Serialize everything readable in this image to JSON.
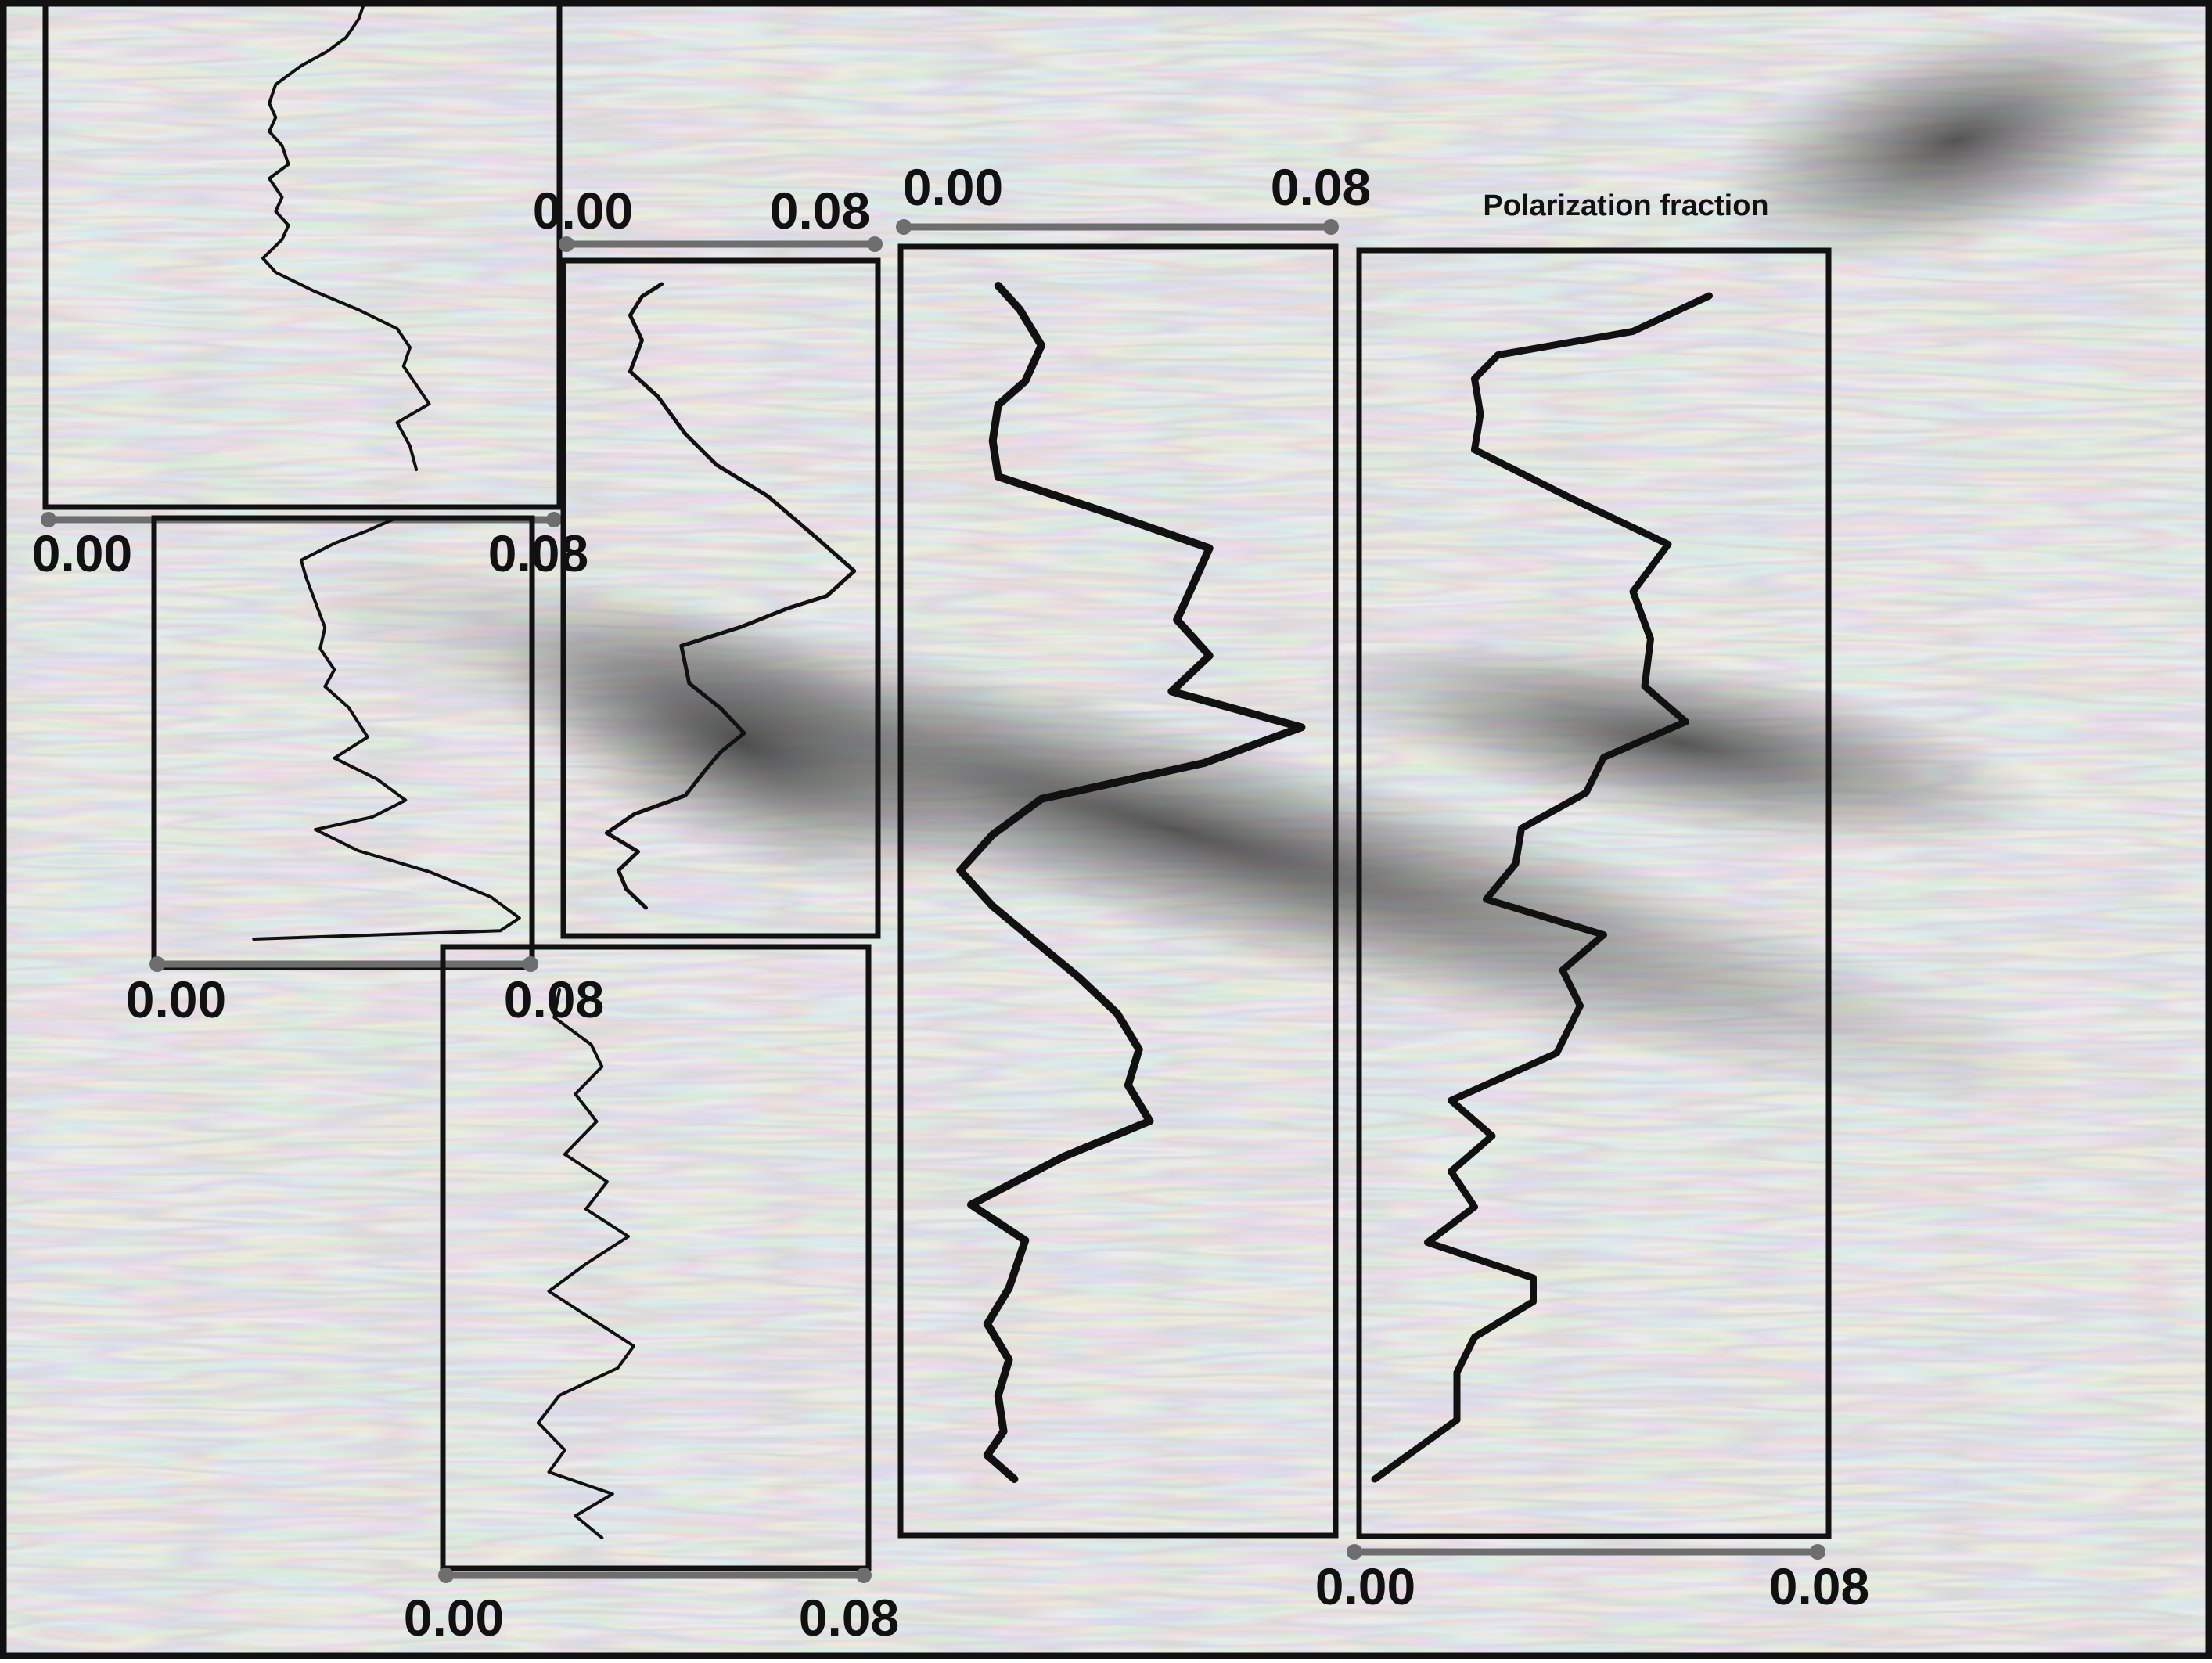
{
  "title": "Polarization fraction",
  "colors": {
    "background_light": "#d8d8d8",
    "background_dark": "#4a4a4a",
    "frame": "#111111",
    "profile_line": "#111111",
    "scale_bar": "#6e6e6e"
  },
  "chart_data": [
    {
      "type": "line",
      "name": "panel-1",
      "xlim": [
        0.0,
        0.08
      ],
      "ticks": [
        "0.00",
        "0.08"
      ],
      "x": [
        0.05,
        0.049,
        0.047,
        0.044,
        0.04,
        0.036,
        0.035,
        0.036,
        0.035,
        0.037,
        0.038,
        0.035,
        0.037,
        0.036,
        0.038,
        0.037,
        0.034,
        0.036,
        0.042,
        0.049,
        0.055,
        0.057,
        0.056,
        0.058,
        0.06,
        0.055,
        0.057,
        0.058
      ],
      "y": [
        0.0,
        0.04,
        0.08,
        0.11,
        0.14,
        0.18,
        0.22,
        0.25,
        0.28,
        0.31,
        0.35,
        0.38,
        0.42,
        0.45,
        0.48,
        0.51,
        0.55,
        0.58,
        0.62,
        0.66,
        0.7,
        0.74,
        0.78,
        0.82,
        0.86,
        0.9,
        0.95,
        1.0
      ]
    },
    {
      "type": "line",
      "name": "panel-2",
      "xlim": [
        0.0,
        0.08
      ],
      "ticks": [
        "0.00",
        "0.08"
      ],
      "x": [
        0.051,
        0.045,
        0.038,
        0.031,
        0.032,
        0.034,
        0.036,
        0.035,
        0.038,
        0.036,
        0.041,
        0.045,
        0.038,
        0.047,
        0.053,
        0.046,
        0.034,
        0.043,
        0.058,
        0.071,
        0.077,
        0.073,
        0.021
      ],
      "y": [
        0.0,
        0.03,
        0.06,
        0.1,
        0.14,
        0.2,
        0.26,
        0.31,
        0.36,
        0.4,
        0.45,
        0.52,
        0.57,
        0.62,
        0.67,
        0.71,
        0.74,
        0.79,
        0.84,
        0.9,
        0.95,
        0.98,
        1.0
      ]
    },
    {
      "type": "line",
      "name": "panel-3",
      "xlim": [
        0.0,
        0.08
      ],
      "ticks": [
        "0.00",
        "0.08"
      ],
      "x": [
        0.025,
        0.02,
        0.017,
        0.02,
        0.017,
        0.024,
        0.031,
        0.039,
        0.052,
        0.065,
        0.074,
        0.067,
        0.057,
        0.045,
        0.03,
        0.032,
        0.04,
        0.046,
        0.04,
        0.036,
        0.031,
        0.018,
        0.011,
        0.019,
        0.014,
        0.016,
        0.021
      ],
      "y": [
        0.0,
        0.02,
        0.05,
        0.09,
        0.14,
        0.18,
        0.24,
        0.29,
        0.34,
        0.41,
        0.46,
        0.5,
        0.52,
        0.55,
        0.58,
        0.64,
        0.68,
        0.72,
        0.75,
        0.78,
        0.82,
        0.85,
        0.88,
        0.91,
        0.94,
        0.97,
        1.0
      ]
    },
    {
      "type": "line",
      "name": "panel-4",
      "xlim": [
        0.0,
        0.08
      ],
      "ticks": [
        "0.00",
        "0.08"
      ],
      "x": [
        0.022,
        0.021,
        0.028,
        0.03,
        0.025,
        0.029,
        0.023,
        0.031,
        0.027,
        0.035,
        0.027,
        0.02,
        0.028,
        0.036,
        0.033,
        0.022,
        0.018,
        0.023,
        0.02,
        0.032,
        0.025,
        0.03
      ],
      "y": [
        0.0,
        0.05,
        0.1,
        0.14,
        0.19,
        0.24,
        0.3,
        0.35,
        0.4,
        0.45,
        0.5,
        0.55,
        0.6,
        0.65,
        0.69,
        0.74,
        0.79,
        0.84,
        0.88,
        0.92,
        0.96,
        1.0
      ]
    },
    {
      "type": "line",
      "name": "panel-5",
      "xlim": [
        0.0,
        0.08
      ],
      "ticks": [
        "0.00",
        "0.08"
      ],
      "x": [
        0.018,
        0.022,
        0.026,
        0.023,
        0.018,
        0.017,
        0.018,
        0.038,
        0.057,
        0.054,
        0.051,
        0.057,
        0.05,
        0.074,
        0.056,
        0.026,
        0.017,
        0.011,
        0.017,
        0.025,
        0.033,
        0.04,
        0.044,
        0.042,
        0.046,
        0.03,
        0.013,
        0.023,
        0.02,
        0.016,
        0.02,
        0.018,
        0.019,
        0.016,
        0.021
      ],
      "y": [
        0.0,
        0.02,
        0.05,
        0.08,
        0.1,
        0.13,
        0.16,
        0.19,
        0.22,
        0.25,
        0.28,
        0.31,
        0.34,
        0.37,
        0.4,
        0.43,
        0.46,
        0.49,
        0.52,
        0.55,
        0.58,
        0.61,
        0.64,
        0.67,
        0.7,
        0.73,
        0.77,
        0.8,
        0.84,
        0.87,
        0.9,
        0.93,
        0.96,
        0.98,
        1.0
      ]
    },
    {
      "type": "line",
      "name": "panel-6",
      "xlim": [
        0.0,
        0.08
      ],
      "ticks": [
        "0.00",
        "0.08"
      ],
      "x": [
        0.061,
        0.048,
        0.025,
        0.021,
        0.022,
        0.021,
        0.037,
        0.054,
        0.048,
        0.051,
        0.05,
        0.057,
        0.043,
        0.04,
        0.029,
        0.028,
        0.023,
        0.043,
        0.036,
        0.039,
        0.035,
        0.017,
        0.024,
        0.017,
        0.021,
        0.013,
        0.031,
        0.031,
        0.021,
        0.018,
        0.018,
        0.004
      ],
      "y": [
        0.0,
        0.03,
        0.05,
        0.07,
        0.1,
        0.13,
        0.17,
        0.21,
        0.25,
        0.29,
        0.33,
        0.36,
        0.39,
        0.42,
        0.45,
        0.48,
        0.51,
        0.54,
        0.57,
        0.6,
        0.64,
        0.68,
        0.71,
        0.74,
        0.77,
        0.8,
        0.83,
        0.85,
        0.88,
        0.91,
        0.95,
        1.0
      ]
    }
  ]
}
